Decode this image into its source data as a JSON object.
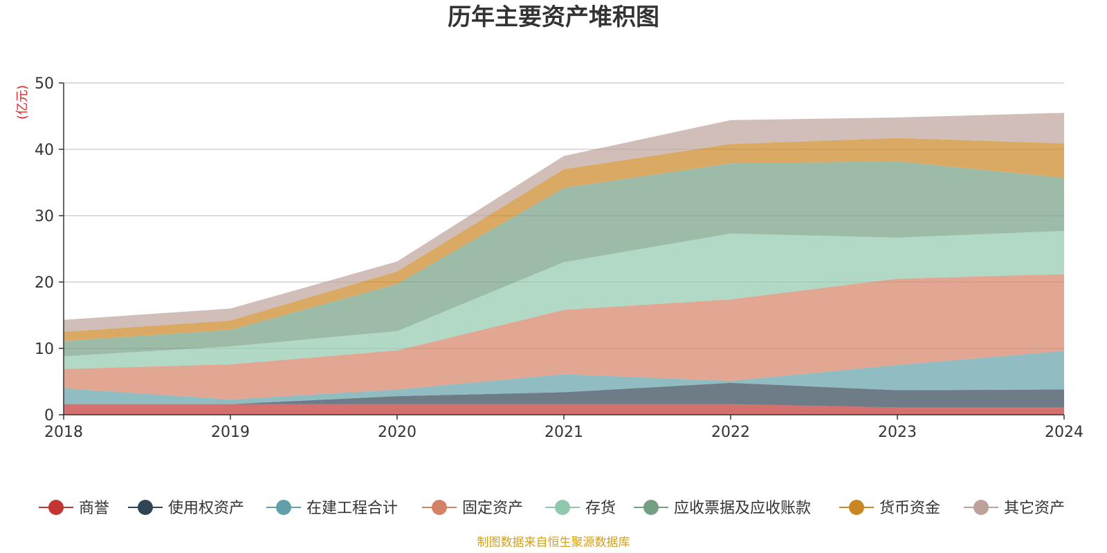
{
  "chart_data": {
    "type": "area",
    "stacked": true,
    "title": "历年主要资产堆积图",
    "unit": "(亿元)",
    "source": "制图数据来自恒生聚源数据库",
    "categories": [
      "2018",
      "2019",
      "2020",
      "2021",
      "2022",
      "2023",
      "2024"
    ],
    "ylim": [
      0,
      50
    ],
    "yticks": [
      "0",
      "10",
      "20",
      "30",
      "40",
      "50"
    ],
    "grid": true,
    "legend_position": "bottom",
    "series": [
      {
        "name": "商誉",
        "color": "#c23531",
        "values": [
          1.6,
          1.6,
          1.6,
          1.6,
          1.6,
          1.1,
          1.1
        ]
      },
      {
        "name": "使用权资产",
        "color": "#2f4554",
        "values": [
          0.0,
          0.0,
          1.2,
          1.8,
          3.2,
          2.6,
          2.7
        ]
      },
      {
        "name": "在建工程合计",
        "color": "#61a0a8",
        "values": [
          2.4,
          0.7,
          1.0,
          2.7,
          0.3,
          3.8,
          5.8
        ]
      },
      {
        "name": "固定资产",
        "color": "#d48265",
        "values": [
          2.9,
          5.3,
          5.9,
          9.7,
          12.3,
          13.0,
          11.6
        ]
      },
      {
        "name": "存货",
        "color": "#91c7ae",
        "values": [
          1.9,
          2.7,
          2.9,
          7.2,
          9.9,
          6.2,
          6.5
        ]
      },
      {
        "name": "应收票据及应收账款",
        "color": "#749f83",
        "values": [
          2.3,
          2.5,
          7.1,
          11.2,
          10.6,
          11.5,
          8.0
        ]
      },
      {
        "name": "货币资金",
        "color": "#ca8622",
        "values": [
          1.4,
          1.4,
          1.9,
          2.8,
          2.9,
          3.5,
          5.2
        ]
      },
      {
        "name": "其它资产",
        "color": "#bda29a",
        "values": [
          1.8,
          1.8,
          1.5,
          2.0,
          3.6,
          3.1,
          4.6
        ]
      }
    ]
  }
}
